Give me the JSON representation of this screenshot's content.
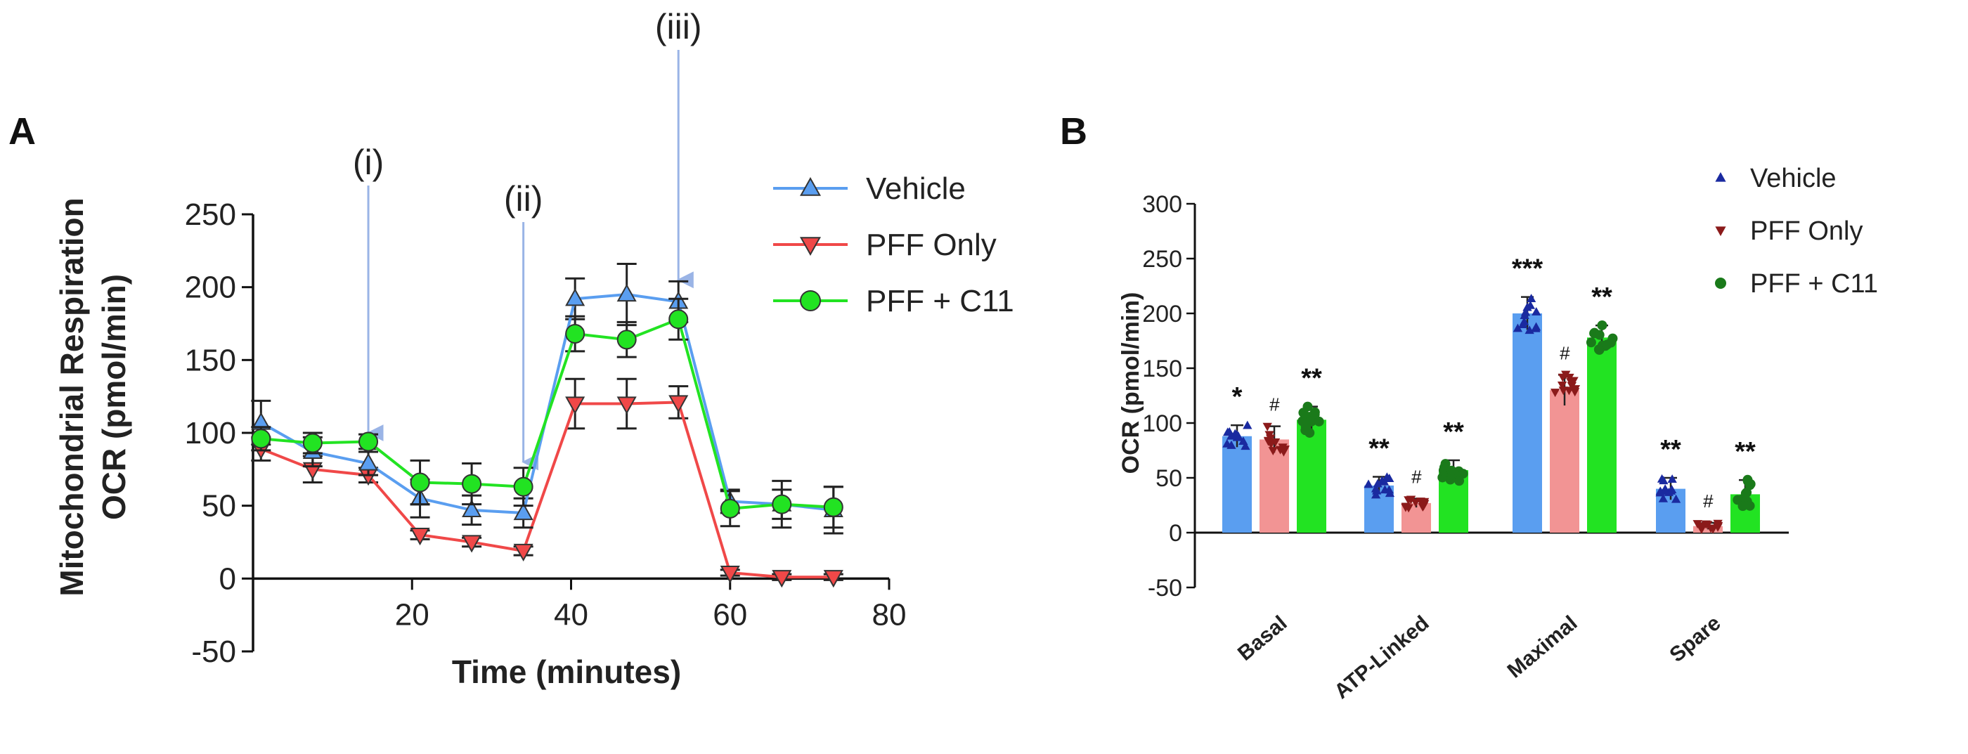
{
  "panels": {
    "a_label": "A",
    "b_label": "B"
  },
  "colors": {
    "vehicle": "#5a9ef0",
    "pff_only": "#f04848",
    "pff_c11": "#22e322",
    "vehicle_bar": "#5a9ef0",
    "pff_only_bar": "#f29494",
    "pff_c11_bar": "#22e322",
    "vehicle_dot": "#1a2aa0",
    "pff_only_dot": "#8b1a1a",
    "pff_c11_dot": "#1a7a1a",
    "injection_arrow": "#9ab4e6"
  },
  "chart_data": [
    {
      "type": "line",
      "panel": "A",
      "xlabel": "Time (minutes)",
      "ylabel_line1": "Mitochondrial Respiration",
      "ylabel_line2": "OCR (pmol/min)",
      "xlim": [
        0,
        80
      ],
      "ylim": [
        -50,
        250
      ],
      "xticks": [
        20,
        40,
        60,
        80
      ],
      "yticks": [
        -50,
        0,
        50,
        100,
        150,
        200,
        250
      ],
      "legend_position": "top-right",
      "injections": [
        {
          "label": "(i)",
          "x": 14.5
        },
        {
          "label": "(ii)",
          "x": 34
        },
        {
          "label": "(iii)",
          "x": 53.5
        }
      ],
      "series": [
        {
          "name": "Vehicle",
          "marker": "triangle-up",
          "x": [
            1,
            7.5,
            14.5,
            21,
            27.5,
            34,
            40.5,
            47,
            53.5,
            60,
            66.5,
            73
          ],
          "y": [
            107,
            87,
            79,
            55,
            47,
            45,
            192,
            195,
            190,
            53,
            51,
            47
          ],
          "err": [
            15,
            10,
            8,
            13,
            10,
            10,
            14,
            21,
            14,
            8,
            16,
            16
          ]
        },
        {
          "name": "PFF Only",
          "marker": "triangle-down",
          "x": [
            1,
            7.5,
            14.5,
            21,
            27.5,
            34,
            40.5,
            47,
            53.5,
            60,
            66.5,
            73
          ],
          "y": [
            89,
            75,
            71,
            30,
            25,
            19,
            120,
            120,
            121,
            4,
            1,
            1
          ],
          "err": [
            8,
            9,
            5,
            3,
            3,
            3,
            17,
            17,
            11,
            2,
            2,
            2
          ]
        },
        {
          "name": "PFF + C11",
          "marker": "circle",
          "x": [
            1,
            7.5,
            14.5,
            21,
            27.5,
            34,
            40.5,
            47,
            53.5,
            60,
            66.5,
            73
          ],
          "y": [
            96,
            93,
            94,
            66,
            65,
            63,
            168,
            164,
            178,
            48,
            51,
            49
          ],
          "err": [
            8,
            7,
            5,
            15,
            14,
            13,
            12,
            12,
            14,
            12,
            10,
            14
          ]
        }
      ]
    },
    {
      "type": "bar",
      "panel": "B",
      "ylabel": "OCR (pmol/min)",
      "ylim": [
        -50,
        300
      ],
      "yticks": [
        -50,
        0,
        50,
        100,
        150,
        200,
        250,
        300
      ],
      "categories": [
        "Basal",
        "ATP-Linked",
        "Maximal",
        "Spare"
      ],
      "legend_position": "top-right",
      "series": [
        {
          "name": "Vehicle",
          "marker": "triangle-up",
          "values": [
            88,
            43,
            200,
            40
          ],
          "err": [
            10,
            8,
            15,
            10
          ],
          "annotations": [
            "*",
            "**",
            "***",
            "**"
          ]
        },
        {
          "name": "PFF Only",
          "marker": "triangle-down",
          "values": [
            85,
            27,
            130,
            6
          ],
          "err": [
            12,
            4,
            14,
            3
          ],
          "annotations": [
            "#",
            "#",
            "#",
            "#"
          ]
        },
        {
          "name": "PFF + C11",
          "marker": "circle",
          "values": [
            103,
            57,
            178,
            35
          ],
          "err": [
            12,
            9,
            11,
            13
          ],
          "annotations": [
            "**",
            "**",
            "**",
            "**"
          ]
        }
      ]
    }
  ]
}
